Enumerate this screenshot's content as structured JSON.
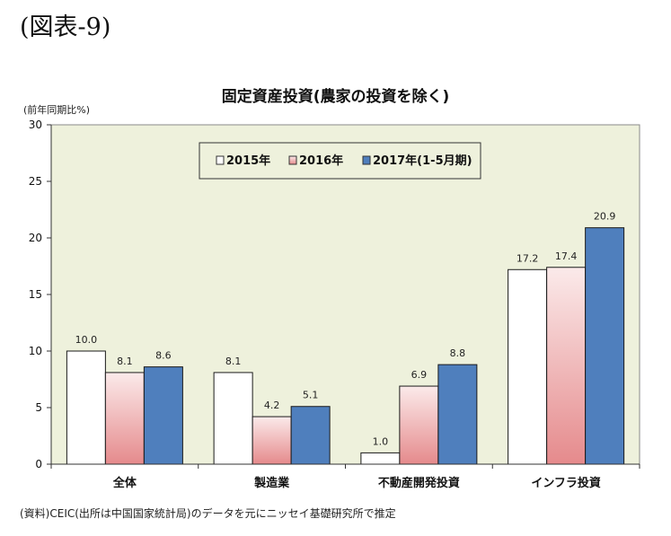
{
  "figure_label": "(図表-9)",
  "source_note": "(資料)CEIC(出所は中国国家統計局)のデータを元にニッセイ基礎研究所で推定",
  "colors": {
    "plot_bg": "#eef1dc",
    "s2015_fill": "#ffffff",
    "s2016_top": "#fbeaea",
    "s2016_bottom": "#e58a8c",
    "s2017_fill": "#4f7fbd",
    "bar_stroke": "#1a1a1a"
  },
  "chart_data": {
    "type": "bar",
    "title": "固定資産投資(農家の投資を除く)",
    "ylabel": "(前年同期比%)",
    "xlabel": "",
    "ylim": [
      0,
      30
    ],
    "yticks": [
      0,
      5,
      10,
      15,
      20,
      25,
      30
    ],
    "grid": false,
    "legend_position": "top-center",
    "categories": [
      "全体",
      "製造業",
      "不動産開発投資",
      "インフラ投資"
    ],
    "series": [
      {
        "name": "2015年",
        "values": [
          10.0,
          8.1,
          1.0,
          17.2
        ],
        "labels": [
          "10.0",
          "8.1",
          "1.0",
          "17.2"
        ]
      },
      {
        "name": "2016年",
        "values": [
          8.1,
          4.2,
          6.9,
          17.4
        ],
        "labels": [
          "8.1",
          "4.2",
          "6.9",
          "17.4"
        ]
      },
      {
        "name": "2017年(1-5月期)",
        "values": [
          8.6,
          5.1,
          8.8,
          20.9
        ],
        "labels": [
          "8.6",
          "5.1",
          "8.8",
          "20.9"
        ]
      }
    ]
  }
}
